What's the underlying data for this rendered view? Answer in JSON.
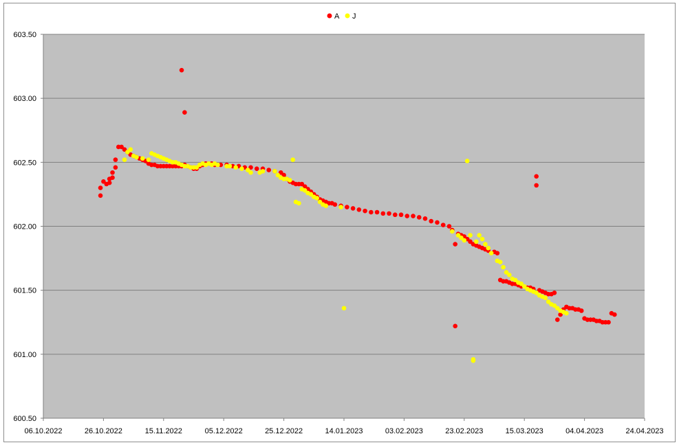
{
  "chart_data": {
    "type": "scatter",
    "title": "",
    "xlabel": "",
    "ylabel": "",
    "xlim": [
      "06.10.2022",
      "24.04.2023"
    ],
    "ylim": [
      600.5,
      603.5
    ],
    "x_ticks": [
      "06.10.2022",
      "26.10.2022",
      "15.11.2022",
      "05.12.2022",
      "25.12.2022",
      "14.01.2023",
      "03.02.2023",
      "23.02.2023",
      "15.03.2023",
      "04.04.2023",
      "24.04.2023"
    ],
    "y_ticks": [
      "600.50",
      "601.00",
      "601.50",
      "602.00",
      "602.50",
      "603.00",
      "603.50"
    ],
    "grid": "horizontal",
    "legend": "top",
    "plot_background": "#c0c0c0",
    "series": [
      {
        "name": "A",
        "color": "#ff0000",
        "points": [
          [
            "25.10.2022",
            602.24
          ],
          [
            "25.10.2022",
            602.3
          ],
          [
            "26.10.2022",
            602.35
          ],
          [
            "27.10.2022",
            602.33
          ],
          [
            "28.10.2022",
            602.37
          ],
          [
            "28.10.2022",
            602.34
          ],
          [
            "29.10.2022",
            602.38
          ],
          [
            "29.10.2022",
            602.42
          ],
          [
            "30.10.2022",
            602.46
          ],
          [
            "30.10.2022",
            602.52
          ],
          [
            "31.10.2022",
            602.62
          ],
          [
            "01.11.2022",
            602.62
          ],
          [
            "02.11.2022",
            602.6
          ],
          [
            "03.11.2022",
            602.58
          ],
          [
            "04.11.2022",
            602.56
          ],
          [
            "05.11.2022",
            602.55
          ],
          [
            "06.11.2022",
            602.54
          ],
          [
            "07.11.2022",
            602.53
          ],
          [
            "08.11.2022",
            602.52
          ],
          [
            "09.11.2022",
            602.51
          ],
          [
            "10.11.2022",
            602.49
          ],
          [
            "11.11.2022",
            602.48
          ],
          [
            "12.11.2022",
            602.48
          ],
          [
            "13.11.2022",
            602.47
          ],
          [
            "14.11.2022",
            602.47
          ],
          [
            "15.11.2022",
            602.47
          ],
          [
            "16.11.2022",
            602.47
          ],
          [
            "17.11.2022",
            602.47
          ],
          [
            "18.11.2022",
            602.47
          ],
          [
            "19.11.2022",
            602.47
          ],
          [
            "20.11.2022",
            602.47
          ],
          [
            "21.11.2022",
            603.22
          ],
          [
            "21.11.2022",
            602.47
          ],
          [
            "22.11.2022",
            602.89
          ],
          [
            "22.11.2022",
            602.48
          ],
          [
            "23.11.2022",
            602.47
          ],
          [
            "24.11.2022",
            602.46
          ],
          [
            "25.11.2022",
            602.45
          ],
          [
            "26.11.2022",
            602.45
          ],
          [
            "27.11.2022",
            602.47
          ],
          [
            "28.11.2022",
            602.48
          ],
          [
            "29.11.2022",
            602.49
          ],
          [
            "30.11.2022",
            602.49
          ],
          [
            "01.12.2022",
            602.49
          ],
          [
            "02.12.2022",
            602.48
          ],
          [
            "04.12.2022",
            602.48
          ],
          [
            "06.12.2022",
            602.48
          ],
          [
            "08.12.2022",
            602.47
          ],
          [
            "10.12.2022",
            602.47
          ],
          [
            "12.12.2022",
            602.46
          ],
          [
            "14.12.2022",
            602.46
          ],
          [
            "16.12.2022",
            602.45
          ],
          [
            "18.12.2022",
            602.45
          ],
          [
            "20.12.2022",
            602.44
          ],
          [
            "22.12.2022",
            602.43
          ],
          [
            "24.12.2022",
            602.42
          ],
          [
            "25.12.2022",
            602.4
          ],
          [
            "26.12.2022",
            602.37
          ],
          [
            "27.12.2022",
            602.35
          ],
          [
            "28.12.2022",
            602.34
          ],
          [
            "29.12.2022",
            602.33
          ],
          [
            "30.12.2022",
            602.33
          ],
          [
            "31.12.2022",
            602.33
          ],
          [
            "01.01.2023",
            602.31
          ],
          [
            "02.01.2023",
            602.29
          ],
          [
            "03.01.2023",
            602.27
          ],
          [
            "04.01.2023",
            602.25
          ],
          [
            "05.01.2023",
            602.23
          ],
          [
            "06.01.2023",
            602.21
          ],
          [
            "07.01.2023",
            602.2
          ],
          [
            "08.01.2023",
            602.19
          ],
          [
            "09.01.2023",
            602.18
          ],
          [
            "10.01.2023",
            602.18
          ],
          [
            "11.01.2023",
            602.17
          ],
          [
            "13.01.2023",
            602.16
          ],
          [
            "15.01.2023",
            602.15
          ],
          [
            "17.01.2023",
            602.14
          ],
          [
            "19.01.2023",
            602.13
          ],
          [
            "21.01.2023",
            602.12
          ],
          [
            "23.01.2023",
            602.11
          ],
          [
            "25.01.2023",
            602.11
          ],
          [
            "27.01.2023",
            602.1
          ],
          [
            "29.01.2023",
            602.1
          ],
          [
            "31.01.2023",
            602.09
          ],
          [
            "02.02.2023",
            602.09
          ],
          [
            "04.02.2023",
            602.08
          ],
          [
            "06.02.2023",
            602.08
          ],
          [
            "08.02.2023",
            602.07
          ],
          [
            "10.02.2023",
            602.06
          ],
          [
            "12.02.2023",
            602.04
          ],
          [
            "14.02.2023",
            602.03
          ],
          [
            "16.02.2023",
            602.01
          ],
          [
            "18.02.2023",
            602.0
          ],
          [
            "19.02.2023",
            601.97
          ],
          [
            "20.02.2023",
            601.86
          ],
          [
            "20.02.2023",
            601.22
          ],
          [
            "21.02.2023",
            601.94
          ],
          [
            "22.02.2023",
            601.93
          ],
          [
            "23.02.2023",
            601.92
          ],
          [
            "24.02.2023",
            601.9
          ],
          [
            "25.02.2023",
            601.88
          ],
          [
            "26.02.2023",
            601.86
          ],
          [
            "27.02.2023",
            601.85
          ],
          [
            "28.02.2023",
            601.84
          ],
          [
            "01.03.2023",
            601.83
          ],
          [
            "02.03.2023",
            601.82
          ],
          [
            "03.03.2023",
            601.81
          ],
          [
            "05.03.2023",
            601.8
          ],
          [
            "06.03.2023",
            601.79
          ],
          [
            "07.03.2023",
            601.58
          ],
          [
            "08.03.2023",
            601.57
          ],
          [
            "09.03.2023",
            601.57
          ],
          [
            "10.03.2023",
            601.56
          ],
          [
            "11.03.2023",
            601.55
          ],
          [
            "12.03.2023",
            601.55
          ],
          [
            "13.03.2023",
            601.54
          ],
          [
            "14.03.2023",
            601.53
          ],
          [
            "16.03.2023",
            601.52
          ],
          [
            "17.03.2023",
            601.52
          ],
          [
            "18.03.2023",
            601.51
          ],
          [
            "19.03.2023",
            602.39
          ],
          [
            "19.03.2023",
            602.32
          ],
          [
            "20.03.2023",
            601.5
          ],
          [
            "21.03.2023",
            601.49
          ],
          [
            "22.03.2023",
            601.48
          ],
          [
            "23.03.2023",
            601.47
          ],
          [
            "24.03.2023",
            601.47
          ],
          [
            "25.03.2023",
            601.48
          ],
          [
            "26.03.2023",
            601.27
          ],
          [
            "27.03.2023",
            601.31
          ],
          [
            "28.03.2023",
            601.35
          ],
          [
            "29.03.2023",
            601.37
          ],
          [
            "30.03.2023",
            601.36
          ],
          [
            "31.03.2023",
            601.36
          ],
          [
            "01.04.2023",
            601.35
          ],
          [
            "02.04.2023",
            601.35
          ],
          [
            "03.04.2023",
            601.34
          ],
          [
            "04.04.2023",
            601.28
          ],
          [
            "05.04.2023",
            601.27
          ],
          [
            "06.04.2023",
            601.27
          ],
          [
            "07.04.2023",
            601.27
          ],
          [
            "08.04.2023",
            601.26
          ],
          [
            "09.04.2023",
            601.26
          ],
          [
            "10.04.2023",
            601.25
          ],
          [
            "11.04.2023",
            601.25
          ],
          [
            "12.04.2023",
            601.25
          ],
          [
            "13.04.2023",
            601.32
          ],
          [
            "14.04.2023",
            601.31
          ]
        ]
      },
      {
        "name": "J",
        "color": "#ffff00",
        "points": [
          [
            "02.11.2022",
            602.52
          ],
          [
            "03.11.2022",
            602.58
          ],
          [
            "04.11.2022",
            602.6
          ],
          [
            "05.11.2022",
            602.55
          ],
          [
            "06.11.2022",
            602.54
          ],
          [
            "08.11.2022",
            602.53
          ],
          [
            "10.11.2022",
            602.52
          ],
          [
            "11.11.2022",
            602.57
          ],
          [
            "12.11.2022",
            602.56
          ],
          [
            "13.11.2022",
            602.55
          ],
          [
            "14.11.2022",
            602.54
          ],
          [
            "15.11.2022",
            602.53
          ],
          [
            "16.11.2022",
            602.52
          ],
          [
            "17.11.2022",
            602.51
          ],
          [
            "18.11.2022",
            602.5
          ],
          [
            "19.11.2022",
            602.5
          ],
          [
            "20.11.2022",
            602.49
          ],
          [
            "21.11.2022",
            602.48
          ],
          [
            "22.11.2022",
            602.47
          ],
          [
            "23.11.2022",
            602.47
          ],
          [
            "24.11.2022",
            602.46
          ],
          [
            "25.11.2022",
            602.46
          ],
          [
            "26.11.2022",
            602.46
          ],
          [
            "27.11.2022",
            602.48
          ],
          [
            "28.11.2022",
            602.49
          ],
          [
            "29.11.2022",
            602.48
          ],
          [
            "30.11.2022",
            602.49
          ],
          [
            "01.12.2022",
            602.48
          ],
          [
            "02.12.2022",
            602.49
          ],
          [
            "03.12.2022",
            602.48
          ],
          [
            "06.12.2022",
            602.47
          ],
          [
            "07.12.2022",
            602.47
          ],
          [
            "09.12.2022",
            602.46
          ],
          [
            "11.12.2022",
            602.45
          ],
          [
            "13.12.2022",
            602.44
          ],
          [
            "14.12.2022",
            602.42
          ],
          [
            "17.12.2022",
            602.42
          ],
          [
            "18.12.2022",
            602.43
          ],
          [
            "22.12.2022",
            602.43
          ],
          [
            "23.12.2022",
            602.4
          ],
          [
            "24.12.2022",
            602.38
          ],
          [
            "25.12.2022",
            602.37
          ],
          [
            "26.12.2022",
            602.37
          ],
          [
            "27.12.2022",
            602.36
          ],
          [
            "28.12.2022",
            602.52
          ],
          [
            "29.12.2022",
            602.19
          ],
          [
            "30.12.2022",
            602.18
          ],
          [
            "31.12.2022",
            602.29
          ],
          [
            "01.01.2023",
            602.28
          ],
          [
            "02.01.2023",
            602.26
          ],
          [
            "03.01.2023",
            602.25
          ],
          [
            "04.01.2023",
            602.23
          ],
          [
            "05.01.2023",
            602.22
          ],
          [
            "06.01.2023",
            602.19
          ],
          [
            "07.01.2023",
            602.17
          ],
          [
            "08.01.2023",
            602.16
          ],
          [
            "13.01.2023",
            602.15
          ],
          [
            "14.01.2023",
            601.36
          ],
          [
            "19.02.2023",
            601.96
          ],
          [
            "21.02.2023",
            601.93
          ],
          [
            "22.02.2023",
            601.91
          ],
          [
            "23.02.2023",
            601.89
          ],
          [
            "24.02.2023",
            602.51
          ],
          [
            "25.02.2023",
            601.93
          ],
          [
            "26.02.2023",
            600.96
          ],
          [
            "26.02.2023",
            600.95
          ],
          [
            "27.02.2023",
            601.88
          ],
          [
            "28.02.2023",
            601.93
          ],
          [
            "01.03.2023",
            601.9
          ],
          [
            "02.03.2023",
            601.86
          ],
          [
            "03.03.2023",
            601.83
          ],
          [
            "04.03.2023",
            601.79
          ],
          [
            "06.03.2023",
            601.73
          ],
          [
            "07.03.2023",
            601.72
          ],
          [
            "08.03.2023",
            601.68
          ],
          [
            "09.03.2023",
            601.64
          ],
          [
            "10.03.2023",
            601.62
          ],
          [
            "11.03.2023",
            601.59
          ],
          [
            "12.03.2023",
            601.58
          ],
          [
            "13.03.2023",
            601.56
          ],
          [
            "14.03.2023",
            601.55
          ],
          [
            "15.03.2023",
            601.53
          ],
          [
            "16.03.2023",
            601.51
          ],
          [
            "17.03.2023",
            601.5
          ],
          [
            "18.03.2023",
            601.49
          ],
          [
            "19.03.2023",
            601.48
          ],
          [
            "20.03.2023",
            601.46
          ],
          [
            "21.03.2023",
            601.45
          ],
          [
            "22.03.2023",
            601.44
          ],
          [
            "23.03.2023",
            601.41
          ],
          [
            "24.03.2023",
            601.39
          ],
          [
            "25.03.2023",
            601.38
          ],
          [
            "26.03.2023",
            601.36
          ],
          [
            "27.03.2023",
            601.34
          ],
          [
            "28.03.2023",
            601.33
          ],
          [
            "29.03.2023",
            601.32
          ]
        ]
      }
    ]
  }
}
